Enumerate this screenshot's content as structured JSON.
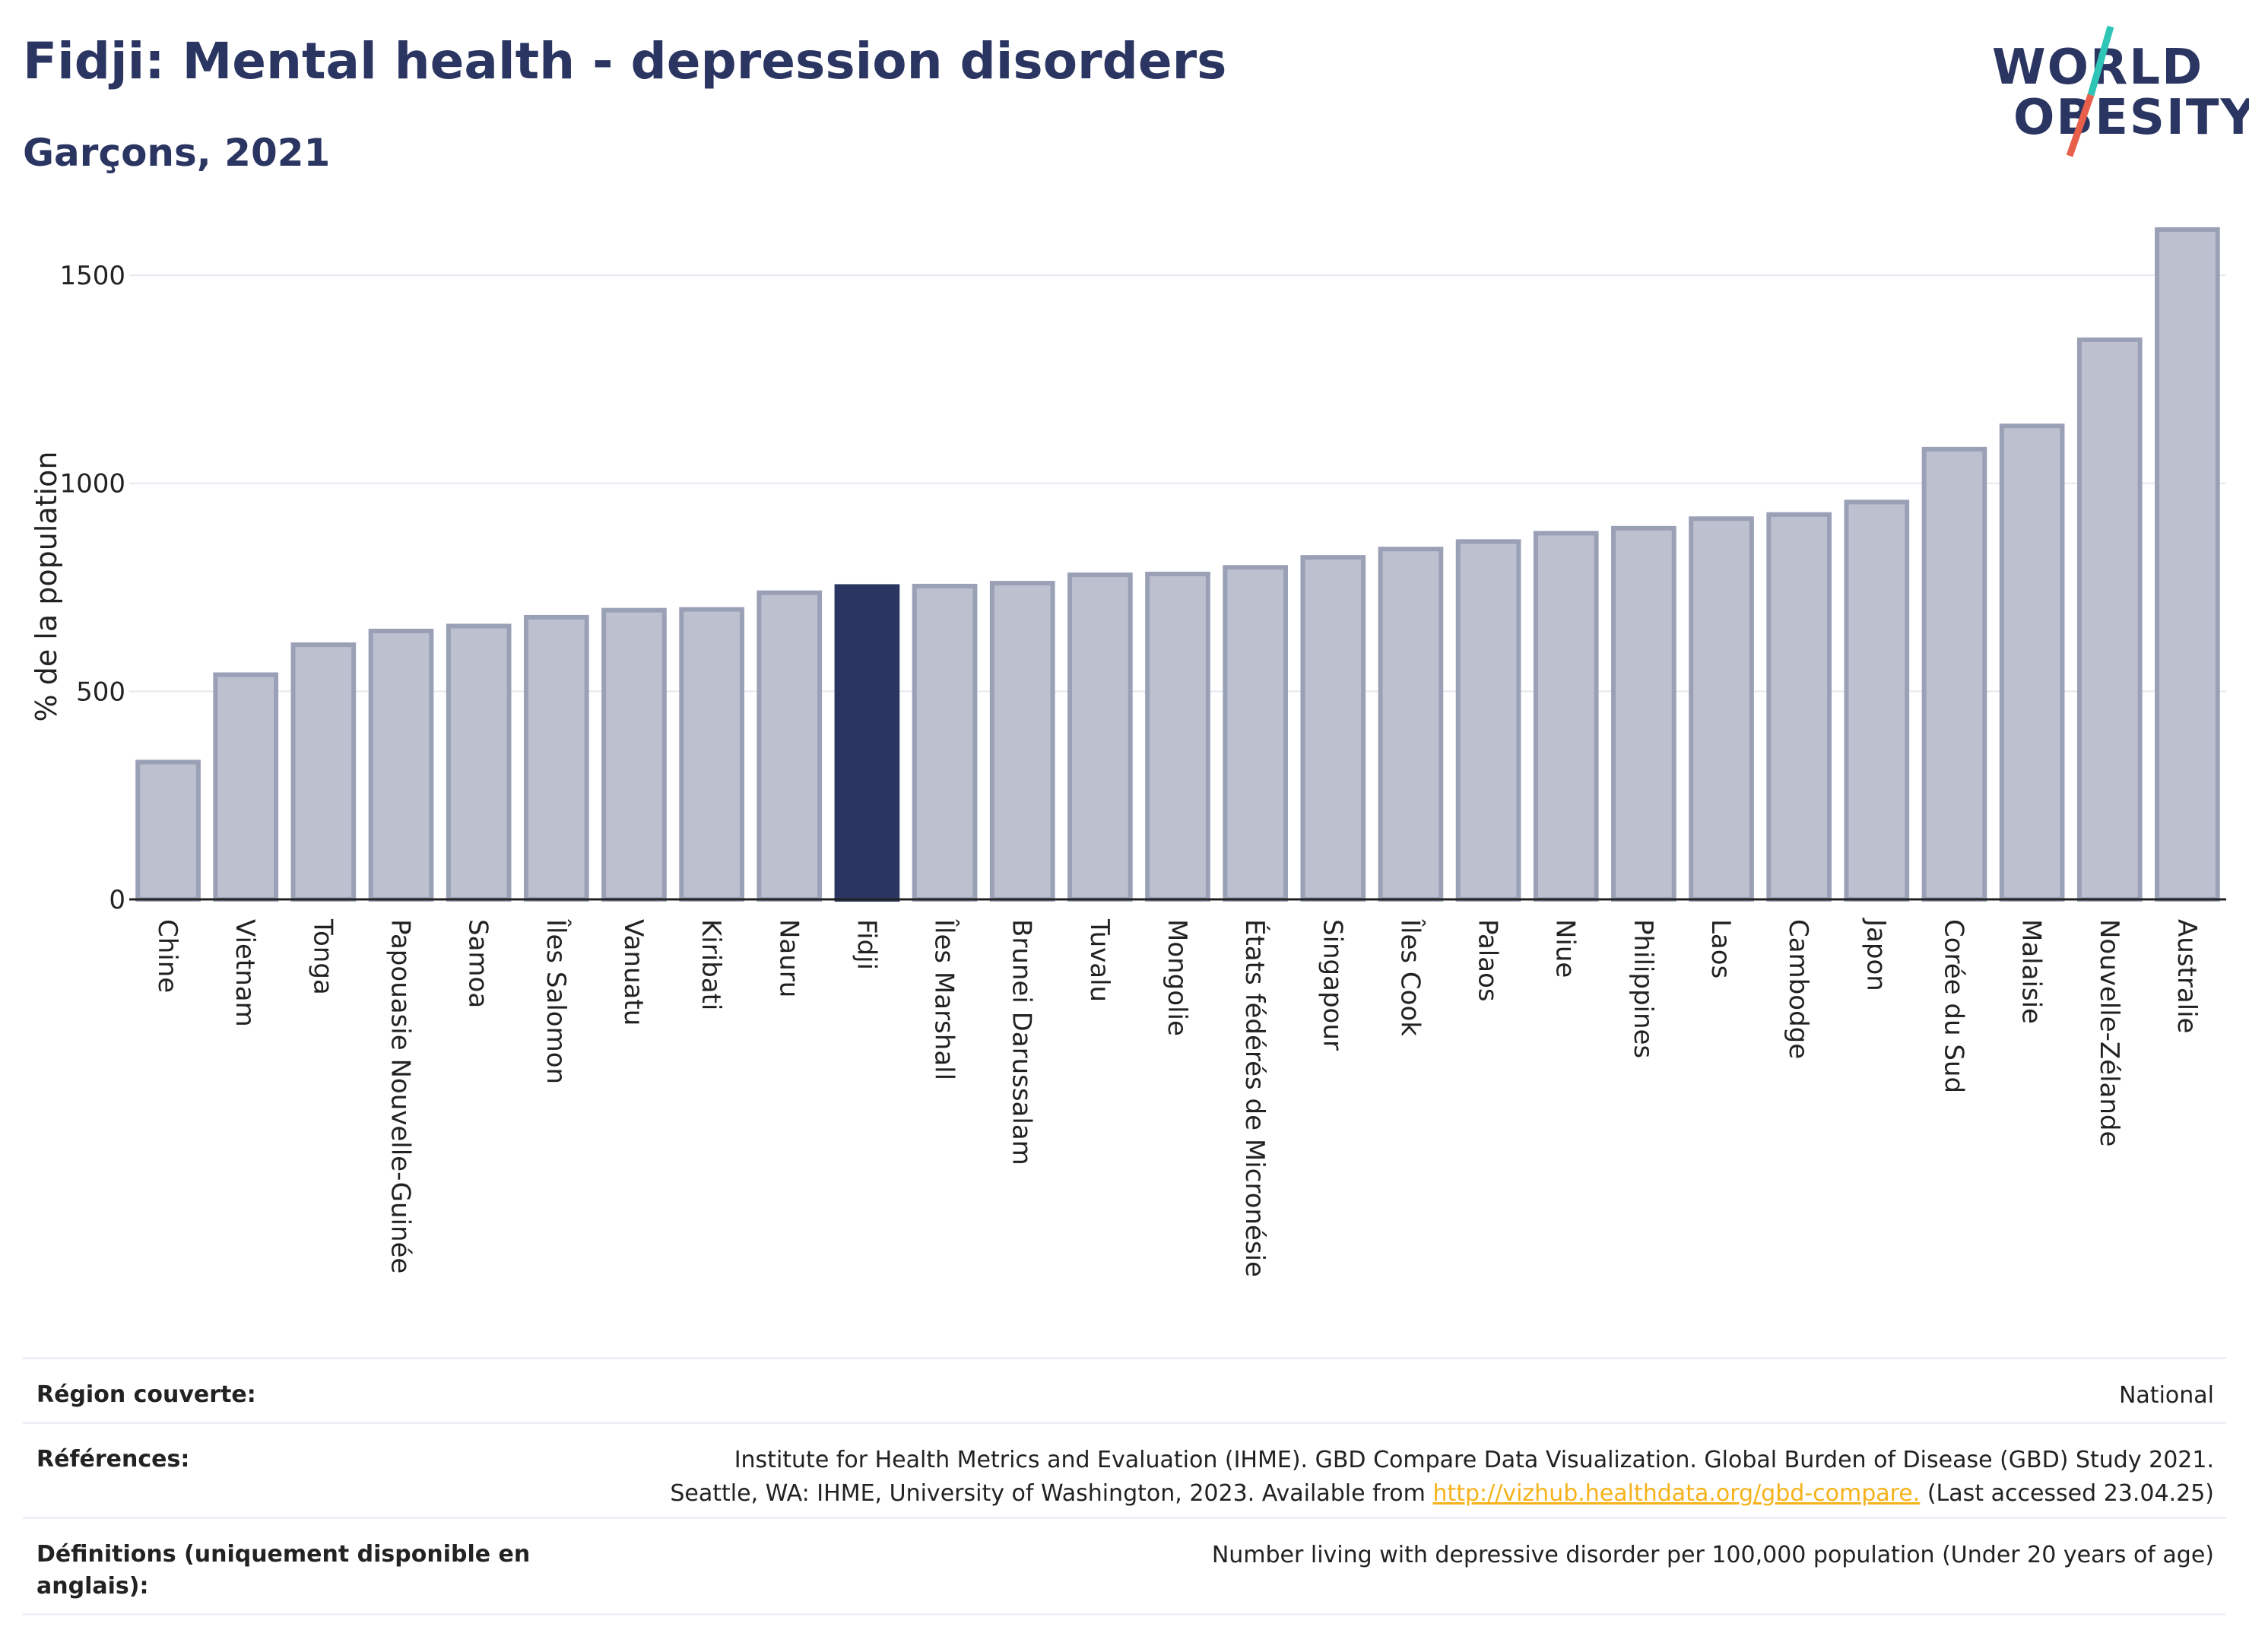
{
  "header": {
    "title": "Fidji: Mental health - depression disorders",
    "subtitle": "Garçons, 2021"
  },
  "logo": {
    "line1": "WORLD",
    "line2": "OBESITY",
    "accent_colors": [
      "#2ec4b6",
      "#e8604c"
    ]
  },
  "chart_data": {
    "type": "bar",
    "title": "",
    "xlabel": "",
    "ylabel": "% de la population",
    "ylim": [
      0,
      1650
    ],
    "yticks": [
      0,
      500,
      1000,
      1500
    ],
    "grid": true,
    "highlight": "Fidji",
    "colors": {
      "bar": "#bdc1cf",
      "bar_edge": "#9aa0b6",
      "highlight": "#2b3561"
    },
    "categories": [
      "Chine",
      "Vietnam",
      "Tonga",
      "Papouasie Nouvelle-Guinée",
      "Samoa",
      "Îles Salomon",
      "Vanuatu",
      "Kiribati",
      "Nauru",
      "Fidji",
      "Îles Marshall",
      "Brunei Darussalam",
      "Tuvalu",
      "Mongolie",
      "États fédérés de Micronésie",
      "Singapour",
      "Îles Cook",
      "Palaos",
      "Niue",
      "Philippines",
      "Laos",
      "Cambodge",
      "Japon",
      "Corée du Sud",
      "Malaisie",
      "Nouvelle-Zélande",
      "Australie"
    ],
    "values": [
      330,
      540,
      612,
      645,
      657,
      678,
      695,
      697,
      737,
      752,
      753,
      760,
      780,
      782,
      798,
      822,
      842,
      860,
      880,
      892,
      915,
      925,
      955,
      1082,
      1138,
      1345,
      1610
    ]
  },
  "info": {
    "region_label": "Région couverte:",
    "region_value": "National",
    "references_label": "Références:",
    "references_line1": "Institute for Health Metrics and Evaluation (IHME). GBD Compare Data Visualization. Global Burden of Disease (GBD) Study 2021.",
    "references_line2_pre": "Seattle, WA: IHME, University of Washington, 2023. Available from",
    "references_link": "http://vizhub.healthdata.org/gbd-compare.",
    "references_line2_post": "(Last accessed 23.04.25)",
    "definitions_label": "Définitions (uniquement disponible en anglais):",
    "definitions_value": "Number living with depressive disorder per 100,000 population (Under 20 years of age)"
  }
}
